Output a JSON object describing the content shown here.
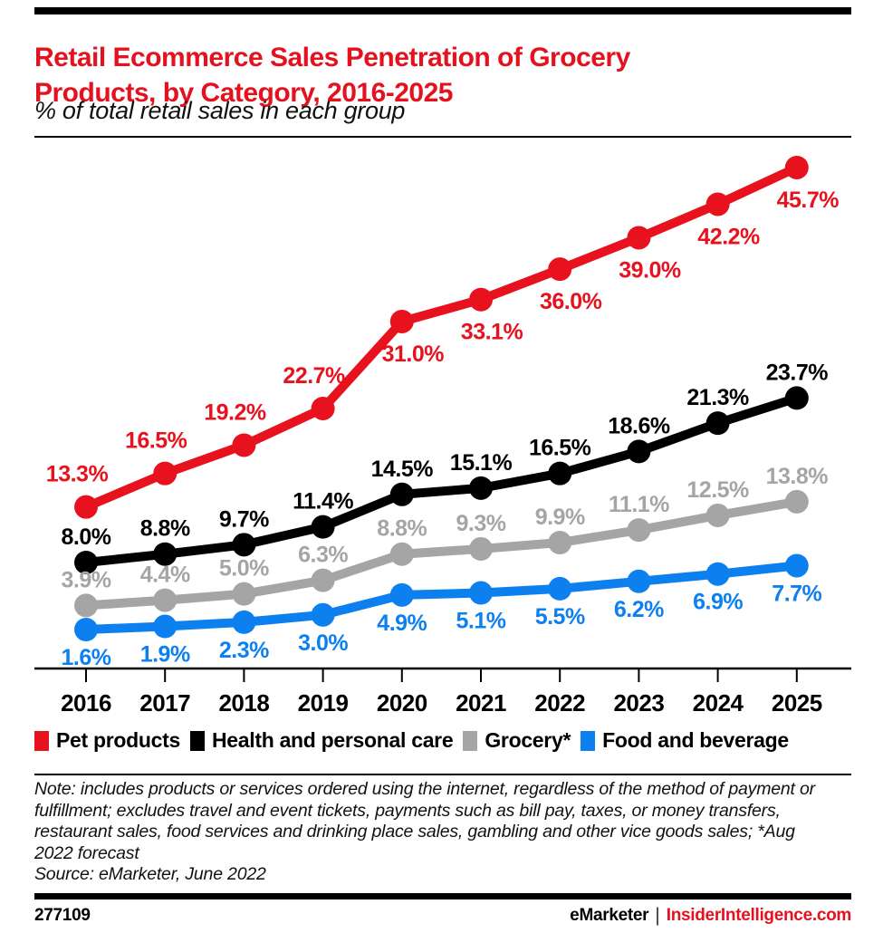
{
  "chart_data": {
    "type": "line",
    "title": "Retail Ecommerce Sales Penetration of Grocery Products, by Category, 2016-2025",
    "subtitle": "% of total retail sales in each group",
    "categories": [
      "2016",
      "2017",
      "2018",
      "2019",
      "2020",
      "2021",
      "2022",
      "2023",
      "2024",
      "2025"
    ],
    "series": [
      {
        "name": "Pet products",
        "color": "#e8111e",
        "values": [
          13.3,
          16.5,
          19.2,
          22.7,
          31.0,
          33.1,
          36.0,
          39.0,
          42.2,
          45.7
        ]
      },
      {
        "name": "Health and personal care",
        "color": "#000000",
        "values": [
          8.0,
          8.8,
          9.7,
          11.4,
          14.5,
          15.1,
          16.5,
          18.6,
          21.3,
          23.7
        ]
      },
      {
        "name": "Grocery*",
        "color": "#a6a5a5",
        "values": [
          3.9,
          4.4,
          5.0,
          6.3,
          8.8,
          9.3,
          9.9,
          11.1,
          12.5,
          13.8
        ]
      },
      {
        "name": "Food and beverage",
        "color": "#0d80f0",
        "values": [
          1.6,
          1.9,
          2.3,
          3.0,
          4.9,
          5.1,
          5.5,
          6.2,
          6.9,
          7.7
        ]
      }
    ],
    "value_suffix": "%",
    "ylim": [
      0,
      48
    ],
    "grid": false,
    "legend_position": "bottom"
  },
  "note": {
    "text": "Note: includes products or services ordered using the internet, regardless of the method of payment or fulfillment; excludes travel and event tickets, payments such as bill pay, taxes, or money transfers, restaurant sales, food services and drinking place sales, gambling and other vice goods sales; *Aug 2022 forecast",
    "source": "Source: eMarketer, June 2022"
  },
  "footer": {
    "chart_id": "277109",
    "brand": "eMarketer",
    "divider": "|",
    "site": "InsiderIntelligence.com"
  }
}
